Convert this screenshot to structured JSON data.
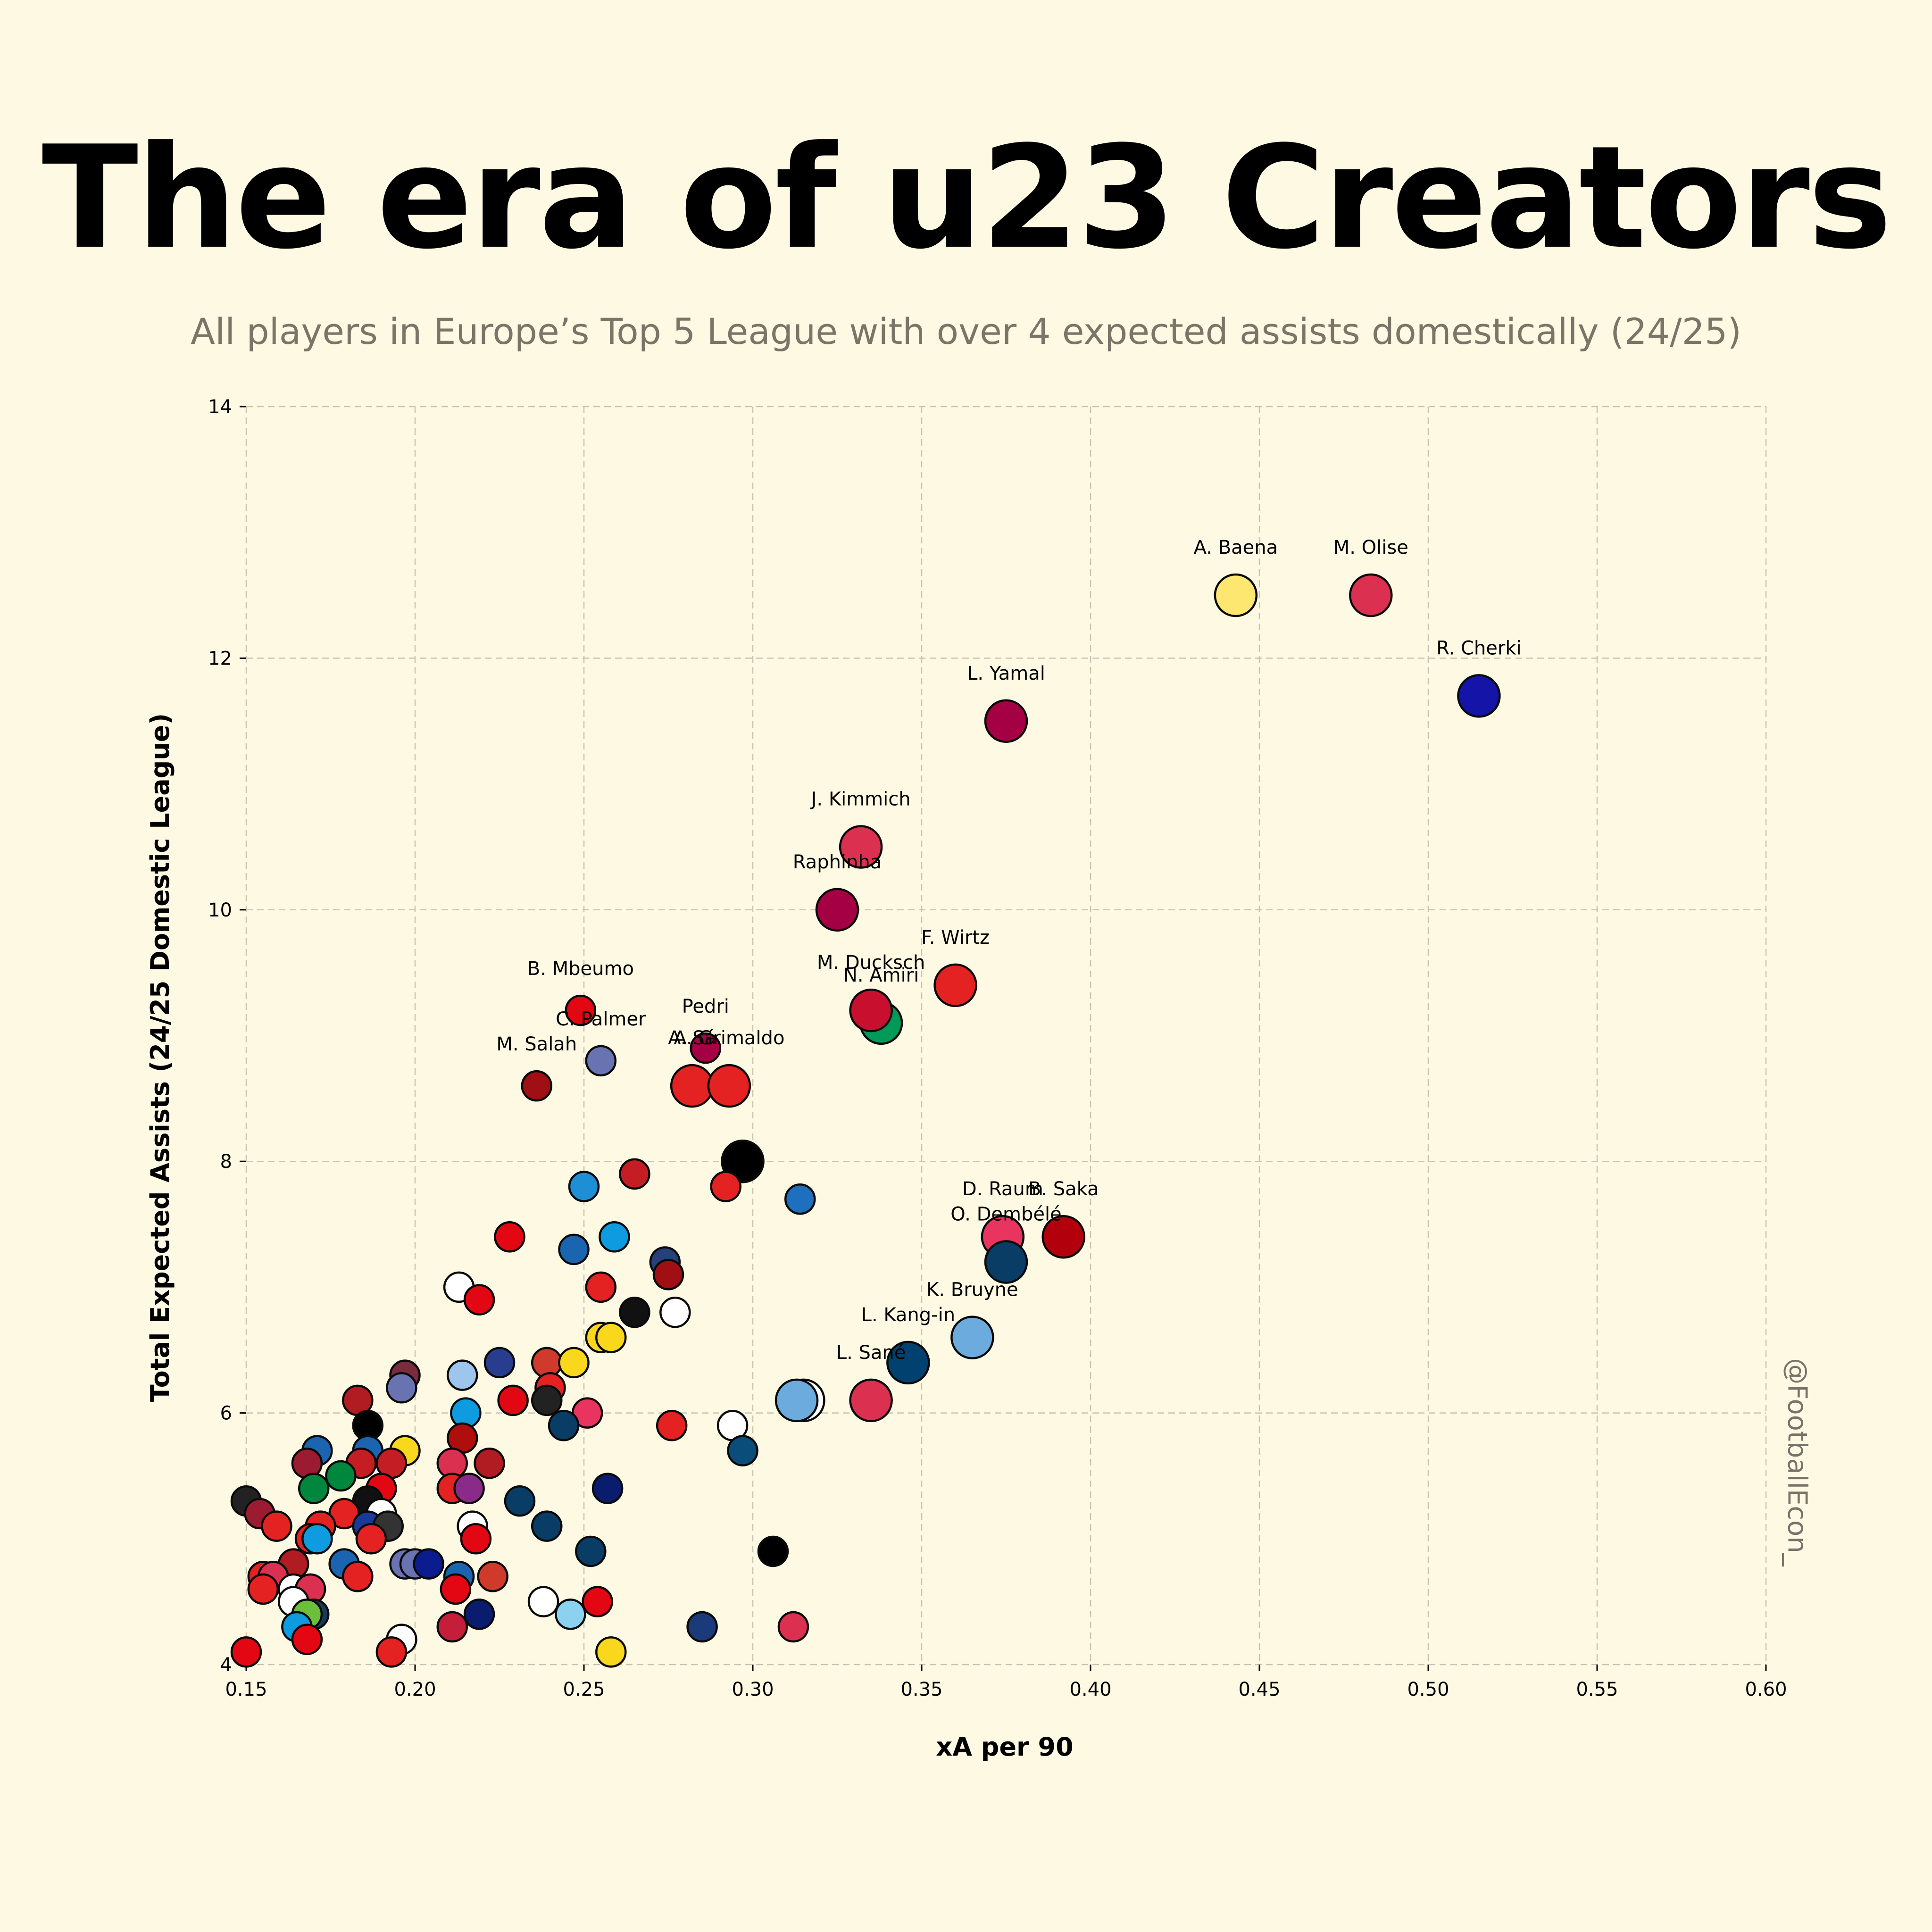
{
  "title": "The era of u23 Creators",
  "subtitle": "All players in Europe’s Top 5 League with over 4 expected assists domestically (24/25)",
  "watermark": "@FootballEcon_",
  "chart_data": {
    "type": "scatter",
    "title": "The era of u23 Creators",
    "subtitle": "All players in Europe’s Top 5 League with over 4 expected assists domestically (24/25)",
    "xlabel": "xA per 90",
    "ylabel": "Total Expected Assists (24/25 Domestic League)",
    "xlim": [
      0.15,
      0.6
    ],
    "ylim": [
      4,
      14
    ],
    "xticks": [
      "0.15",
      "0.20",
      "0.25",
      "0.30",
      "0.35",
      "0.40",
      "0.45",
      "0.50",
      "0.55",
      "0.60"
    ],
    "yticks": [
      "4",
      "6",
      "8",
      "10",
      "12",
      "14"
    ],
    "grid": true,
    "labeled_points": [
      {
        "label": "A. Baena",
        "x": 0.443,
        "y": 12.5,
        "color": "#fde770",
        "big": true
      },
      {
        "label": "M. Olise",
        "x": 0.483,
        "y": 12.5,
        "color": "#dc3050",
        "big": true
      },
      {
        "label": "R. Cherki",
        "x": 0.515,
        "y": 11.7,
        "color": "#1414a8",
        "big": true
      },
      {
        "label": "L. Yamal",
        "x": 0.375,
        "y": 11.5,
        "color": "#a50044",
        "big": true
      },
      {
        "label": "J. Kimmich",
        "x": 0.332,
        "y": 10.5,
        "color": "#dc3050",
        "big": true
      },
      {
        "label": "Raphinha",
        "x": 0.325,
        "y": 10.0,
        "color": "#a50044",
        "big": true
      },
      {
        "label": "F. Wirtz",
        "x": 0.36,
        "y": 9.4,
        "color": "#e32221",
        "big": true
      },
      {
        "label": "N. Amiri",
        "x": 0.338,
        "y": 9.1,
        "color": "#009a58",
        "big": true
      },
      {
        "label": "M. Ducksch",
        "x": 0.335,
        "y": 9.2,
        "color": "#c8102e",
        "big": true
      },
      {
        "label": "B. Mbeumo",
        "x": 0.249,
        "y": 9.2,
        "color": "#e30613",
        "big": false
      },
      {
        "label": "C. Palmer",
        "x": 0.255,
        "y": 8.8,
        "color": "#6a73b1",
        "big": false
      },
      {
        "label": "Pedri",
        "x": 0.286,
        "y": 8.9,
        "color": "#a50044",
        "big": false
      },
      {
        "label": "A. Sá",
        "x": 0.282,
        "y": 8.6,
        "color": "#e32221",
        "big": true
      },
      {
        "label": "A. Grimaldo",
        "x": 0.293,
        "y": 8.6,
        "color": "#e32221",
        "big": true
      },
      {
        "label": "M. Salah",
        "x": 0.236,
        "y": 8.6,
        "color": "#a00f14",
        "big": false
      },
      {
        "label": "D. Raum",
        "x": 0.374,
        "y": 7.4,
        "color": "#e8345e",
        "big": true
      },
      {
        "label": "B. Saka",
        "x": 0.392,
        "y": 7.4,
        "color": "#b3000d",
        "big": true
      },
      {
        "label": "O. Dembélé",
        "x": 0.375,
        "y": 7.2,
        "color": "#0a3d66",
        "big": true
      },
      {
        "label": "K. Bruyne",
        "x": 0.365,
        "y": 6.6,
        "color": "#6cabdd",
        "big": true
      },
      {
        "label": "L. Kang-in",
        "x": 0.346,
        "y": 6.4,
        "color": "#004170",
        "big": true
      },
      {
        "label": "L. Sané",
        "x": 0.335,
        "y": 6.1,
        "color": "#dc3050",
        "big": true
      }
    ],
    "other_points": [
      {
        "x": 0.297,
        "y": 8.0,
        "color": "#000000",
        "big": true
      },
      {
        "x": 0.265,
        "y": 7.9,
        "color": "#c41e24",
        "big": false
      },
      {
        "x": 0.25,
        "y": 7.8,
        "color": "#1e8fd5",
        "big": false
      },
      {
        "x": 0.292,
        "y": 7.8,
        "color": "#e32221",
        "big": false
      },
      {
        "x": 0.314,
        "y": 7.7,
        "color": "#1f6fbf",
        "big": false
      },
      {
        "x": 0.228,
        "y": 7.4,
        "color": "#e30613",
        "big": false
      },
      {
        "x": 0.259,
        "y": 7.4,
        "color": "#0f9be0",
        "big": false
      },
      {
        "x": 0.247,
        "y": 7.3,
        "color": "#1a64b0",
        "big": false
      },
      {
        "x": 0.274,
        "y": 7.2,
        "color": "#28407a",
        "big": false
      },
      {
        "x": 0.275,
        "y": 7.1,
        "color": "#a00f14",
        "big": false
      },
      {
        "x": 0.213,
        "y": 7.0,
        "color": "#ffffff",
        "big": false
      },
      {
        "x": 0.255,
        "y": 7.0,
        "color": "#e32221",
        "big": false
      },
      {
        "x": 0.219,
        "y": 6.9,
        "color": "#e30613",
        "big": false
      },
      {
        "x": 0.265,
        "y": 6.8,
        "color": "#111111",
        "big": false
      },
      {
        "x": 0.277,
        "y": 6.8,
        "color": "#ffffff",
        "big": false
      },
      {
        "x": 0.255,
        "y": 6.6,
        "color": "#f9d71c",
        "big": false
      },
      {
        "x": 0.258,
        "y": 6.6,
        "color": "#f9d71c",
        "big": false
      },
      {
        "x": 0.225,
        "y": 6.4,
        "color": "#293d8f",
        "big": false
      },
      {
        "x": 0.239,
        "y": 6.4,
        "color": "#d03a2a",
        "big": false
      },
      {
        "x": 0.247,
        "y": 6.4,
        "color": "#f9d71c",
        "big": false
      },
      {
        "x": 0.214,
        "y": 6.3,
        "color": "#9ec5ec",
        "big": false
      },
      {
        "x": 0.197,
        "y": 6.3,
        "color": "#7a2c3c",
        "big": false
      },
      {
        "x": 0.196,
        "y": 6.2,
        "color": "#6a73b1",
        "big": false
      },
      {
        "x": 0.24,
        "y": 6.2,
        "color": "#e32221",
        "big": false
      },
      {
        "x": 0.183,
        "y": 6.1,
        "color": "#b01c22",
        "big": false
      },
      {
        "x": 0.229,
        "y": 6.1,
        "color": "#e30613",
        "big": false
      },
      {
        "x": 0.239,
        "y": 6.1,
        "color": "#222222",
        "big": false
      },
      {
        "x": 0.315,
        "y": 6.1,
        "color": "#ffffff",
        "big": true
      },
      {
        "x": 0.313,
        "y": 6.1,
        "color": "#6cabdd",
        "big": true
      },
      {
        "x": 0.215,
        "y": 6.0,
        "color": "#0f9be0",
        "big": false
      },
      {
        "x": 0.251,
        "y": 6.0,
        "color": "#e8345e",
        "big": false
      },
      {
        "x": 0.186,
        "y": 5.9,
        "color": "#000000",
        "big": false
      },
      {
        "x": 0.244,
        "y": 5.9,
        "color": "#0a3d66",
        "big": false
      },
      {
        "x": 0.276,
        "y": 5.9,
        "color": "#e32221",
        "big": false
      },
      {
        "x": 0.294,
        "y": 5.9,
        "color": "#ffffff",
        "big": false
      },
      {
        "x": 0.214,
        "y": 5.8,
        "color": "#b00d0d",
        "big": false
      },
      {
        "x": 0.171,
        "y": 5.7,
        "color": "#1a64b0",
        "big": false
      },
      {
        "x": 0.186,
        "y": 5.7,
        "color": "#1a64b0",
        "big": false
      },
      {
        "x": 0.197,
        "y": 5.7,
        "color": "#f9d71c",
        "big": false
      },
      {
        "x": 0.297,
        "y": 5.7,
        "color": "#0a4d7a",
        "big": false
      },
      {
        "x": 0.168,
        "y": 5.6,
        "color": "#9b1b30",
        "big": false
      },
      {
        "x": 0.184,
        "y": 5.6,
        "color": "#c41e24",
        "big": false
      },
      {
        "x": 0.193,
        "y": 5.6,
        "color": "#c41e24",
        "big": false
      },
      {
        "x": 0.211,
        "y": 5.6,
        "color": "#dc3050",
        "big": false
      },
      {
        "x": 0.222,
        "y": 5.6,
        "color": "#b01c22",
        "big": false
      },
      {
        "x": 0.178,
        "y": 5.5,
        "color": "#00873e",
        "big": false
      },
      {
        "x": 0.17,
        "y": 5.4,
        "color": "#00873e",
        "big": false
      },
      {
        "x": 0.19,
        "y": 5.4,
        "color": "#e30613",
        "big": false
      },
      {
        "x": 0.211,
        "y": 5.4,
        "color": "#e32221",
        "big": false
      },
      {
        "x": 0.216,
        "y": 5.4,
        "color": "#8a2b8a",
        "big": false
      },
      {
        "x": 0.257,
        "y": 5.4,
        "color": "#0a1c6e",
        "big": false
      },
      {
        "x": 0.15,
        "y": 5.3,
        "color": "#222222",
        "big": false
      },
      {
        "x": 0.186,
        "y": 5.3,
        "color": "#111111",
        "big": false
      },
      {
        "x": 0.231,
        "y": 5.3,
        "color": "#0a3d66",
        "big": false
      },
      {
        "x": 0.154,
        "y": 5.2,
        "color": "#9b1b30",
        "big": false
      },
      {
        "x": 0.179,
        "y": 5.2,
        "color": "#e32221",
        "big": false
      },
      {
        "x": 0.19,
        "y": 5.2,
        "color": "#ffffff",
        "big": false
      },
      {
        "x": 0.159,
        "y": 5.1,
        "color": "#e32221",
        "big": false
      },
      {
        "x": 0.172,
        "y": 5.1,
        "color": "#e32221",
        "big": false
      },
      {
        "x": 0.186,
        "y": 5.1,
        "color": "#1a3a9a",
        "big": false
      },
      {
        "x": 0.192,
        "y": 5.1,
        "color": "#333333",
        "big": false
      },
      {
        "x": 0.217,
        "y": 5.1,
        "color": "#ffffff",
        "big": false
      },
      {
        "x": 0.239,
        "y": 5.1,
        "color": "#0a3d66",
        "big": false
      },
      {
        "x": 0.169,
        "y": 5.0,
        "color": "#e32221",
        "big": false
      },
      {
        "x": 0.171,
        "y": 5.0,
        "color": "#0f9be0",
        "big": false
      },
      {
        "x": 0.187,
        "y": 5.0,
        "color": "#e32221",
        "big": false
      },
      {
        "x": 0.218,
        "y": 5.0,
        "color": "#e30613",
        "big": false
      },
      {
        "x": 0.252,
        "y": 4.9,
        "color": "#0a3d66",
        "big": false
      },
      {
        "x": 0.306,
        "y": 4.9,
        "color": "#000000",
        "big": false
      },
      {
        "x": 0.164,
        "y": 4.8,
        "color": "#b01c22",
        "big": false
      },
      {
        "x": 0.179,
        "y": 4.8,
        "color": "#1a64b0",
        "big": false
      },
      {
        "x": 0.197,
        "y": 4.8,
        "color": "#6a73b1",
        "big": false
      },
      {
        "x": 0.2,
        "y": 4.8,
        "color": "#6a73b1",
        "big": false
      },
      {
        "x": 0.204,
        "y": 4.8,
        "color": "#0a1c8e",
        "big": false
      },
      {
        "x": 0.155,
        "y": 4.7,
        "color": "#e32221",
        "big": false
      },
      {
        "x": 0.158,
        "y": 4.7,
        "color": "#dc3050",
        "big": false
      },
      {
        "x": 0.183,
        "y": 4.7,
        "color": "#e32221",
        "big": false
      },
      {
        "x": 0.213,
        "y": 4.7,
        "color": "#1a64b0",
        "big": false
      },
      {
        "x": 0.223,
        "y": 4.7,
        "color": "#d03a2a",
        "big": false
      },
      {
        "x": 0.155,
        "y": 4.6,
        "color": "#e32221",
        "big": false
      },
      {
        "x": 0.164,
        "y": 4.6,
        "color": "#ffffff",
        "big": false
      },
      {
        "x": 0.169,
        "y": 4.6,
        "color": "#dc3050",
        "big": false
      },
      {
        "x": 0.212,
        "y": 4.6,
        "color": "#e30613",
        "big": false
      },
      {
        "x": 0.164,
        "y": 4.5,
        "color": "#ffffff",
        "big": false
      },
      {
        "x": 0.238,
        "y": 4.5,
        "color": "#ffffff",
        "big": false
      },
      {
        "x": 0.254,
        "y": 4.5,
        "color": "#e30613",
        "big": false
      },
      {
        "x": 0.168,
        "y": 4.4,
        "color": "#0a3d66",
        "big": false
      },
      {
        "x": 0.17,
        "y": 4.4,
        "color": "#1a3a5a",
        "big": false
      },
      {
        "x": 0.168,
        "y": 4.4,
        "color": "#6cbf3a",
        "big": false
      },
      {
        "x": 0.219,
        "y": 4.4,
        "color": "#0a1c6e",
        "big": false
      },
      {
        "x": 0.246,
        "y": 4.4,
        "color": "#8ad2f0",
        "big": false
      },
      {
        "x": 0.165,
        "y": 4.3,
        "color": "#0f9be0",
        "big": false
      },
      {
        "x": 0.211,
        "y": 4.3,
        "color": "#c41e3a",
        "big": false
      },
      {
        "x": 0.285,
        "y": 4.3,
        "color": "#1a3a7a",
        "big": false
      },
      {
        "x": 0.312,
        "y": 4.3,
        "color": "#dc3050",
        "big": false
      },
      {
        "x": 0.168,
        "y": 4.2,
        "color": "#e30613",
        "big": false
      },
      {
        "x": 0.196,
        "y": 4.2,
        "color": "#ffffff",
        "big": false
      },
      {
        "x": 0.15,
        "y": 4.1,
        "color": "#e30613",
        "big": false
      },
      {
        "x": 0.193,
        "y": 4.1,
        "color": "#e32221",
        "big": false
      },
      {
        "x": 0.258,
        "y": 4.1,
        "color": "#f9d71c",
        "big": false
      }
    ]
  }
}
